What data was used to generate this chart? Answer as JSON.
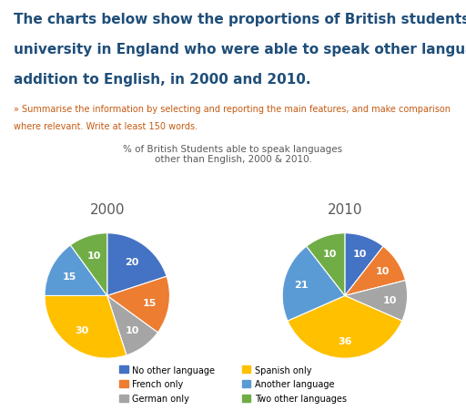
{
  "title_main_line1": "The charts below show the proportions of British students at one",
  "title_main_line2": "university in England who were able to speak other languages in",
  "title_main_line3": "addition to English, in 2000 and 2010.",
  "subtitle_line1": "» Summarise the information by selecting and reporting the main features, and make comparison",
  "subtitle_line2": "where relevant. Write at least 150 words.",
  "chart_title": "% of British Students able to speak languages\nother than English, 2000 & 2010.",
  "title_color": "#1F4E79",
  "subtitle_color": "#C55A11",
  "chart_title_color": "#595959",
  "year_2000_label": "2000",
  "year_2010_label": "2010",
  "categories": [
    "No other language",
    "French only",
    "German only",
    "Spanish only",
    "Another language",
    "Two other languages"
  ],
  "colors": [
    "#4472C4",
    "#ED7D31",
    "#A5A5A5",
    "#FFC000",
    "#5B9BD5",
    "#70AD47"
  ],
  "values_2000": [
    20,
    15,
    10,
    30,
    15,
    10
  ],
  "values_2010": [
    10,
    10,
    10,
    35,
    20,
    10
  ],
  "startangle_2000": 90,
  "startangle_2010": 90,
  "bg_color": "#FFFFFF",
  "title_fontsize": 11,
  "subtitle_fontsize": 7,
  "chart_title_fontsize": 7.5,
  "year_label_fontsize": 11,
  "pct_fontsize": 8,
  "legend_fontsize": 7
}
